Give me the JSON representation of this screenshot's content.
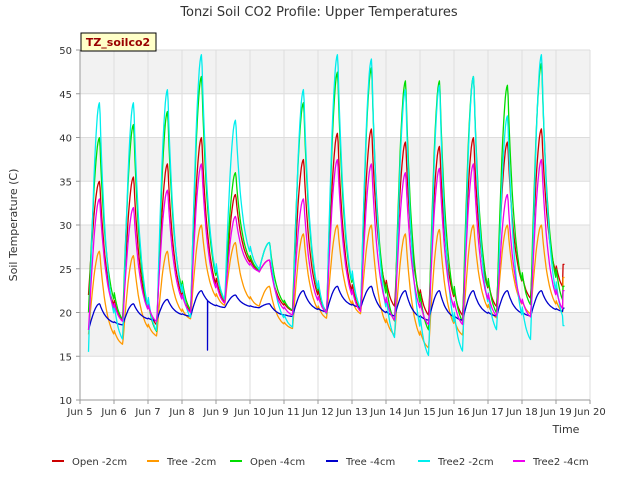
{
  "chart_data": {
    "type": "line",
    "title": "Tonzi Soil CO2 Profile: Upper Temperatures",
    "xlabel": "Time",
    "ylabel": "Soil Temperature (C)",
    "badge": "TZ_soilco2",
    "xlim": [
      5,
      20
    ],
    "ylim": [
      10,
      50
    ],
    "x_ticks": [
      5,
      6,
      7,
      8,
      9,
      10,
      11,
      12,
      13,
      14,
      15,
      16,
      17,
      18,
      19,
      20
    ],
    "x_tick_labels": [
      "Jun 5",
      "Jun 6",
      "Jun 7",
      "Jun 8",
      "Jun 9",
      "Jun 10",
      "Jun 11",
      "Jun 12",
      "Jun 13",
      "Jun 14",
      "Jun 15",
      "Jun 16",
      "Jun 17",
      "Jun 18",
      "Jun 19",
      "Jun 20"
    ],
    "y_ticks": [
      10,
      15,
      20,
      25,
      30,
      35,
      40,
      45,
      50
    ],
    "y_tick_labels": [
      "10",
      "15",
      "20",
      "25",
      "30",
      "35",
      "40",
      "45",
      "50"
    ],
    "grid": true,
    "background_bands": true,
    "legend_position": "bottom",
    "series": [
      {
        "name": "Open -2cm",
        "color": "#cc0000",
        "daily_min": [
          22.0,
          18.5,
          18.0,
          19.5,
          20.5,
          24.5,
          20.0,
          19.5,
          19.5,
          20.0,
          19.0,
          19.0,
          20.0,
          21.0,
          22.0
        ],
        "daily_max": [
          35.0,
          35.5,
          37.0,
          40.0,
          33.5,
          26.0,
          37.5,
          40.5,
          41.0,
          39.5,
          39.0,
          40.0,
          39.5,
          41.0,
          null
        ],
        "start": 23.0,
        "end": 25.5
      },
      {
        "name": "Tree -2cm",
        "color": "#ff9900",
        "daily_min": [
          17.5,
          16.0,
          17.0,
          19.0,
          20.5,
          20.5,
          18.0,
          19.0,
          19.5,
          17.0,
          15.5,
          17.0,
          19.0,
          19.5,
          19.5
        ],
        "daily_max": [
          27.0,
          26.5,
          27.0,
          30.0,
          28.0,
          23.0,
          29.0,
          30.0,
          30.0,
          29.0,
          29.5,
          30.0,
          30.0,
          30.0,
          null
        ],
        "start": 21.0,
        "end": 24.0
      },
      {
        "name": "Open -4cm",
        "color": "#00dd00",
        "daily_min": [
          20.0,
          18.5,
          17.0,
          19.5,
          20.5,
          24.5,
          20.0,
          19.0,
          19.5,
          18.0,
          17.0,
          18.0,
          19.0,
          20.0,
          20.0
        ],
        "daily_max": [
          40.0,
          41.5,
          43.0,
          47.0,
          36.0,
          28.0,
          44.0,
          47.5,
          48.0,
          46.5,
          46.5,
          47.0,
          46.0,
          48.5,
          null
        ],
        "start": 22.0,
        "end": 23.0
      },
      {
        "name": "Tree -4cm",
        "color": "#0000cc",
        "daily_min": [
          18.0,
          18.5,
          19.0,
          19.5,
          20.5,
          20.5,
          19.5,
          20.0,
          20.5,
          19.5,
          19.0,
          19.0,
          19.5,
          19.5,
          20.0
        ],
        "daily_max": [
          21.0,
          21.0,
          21.5,
          22.5,
          22.0,
          21.0,
          22.5,
          23.0,
          23.0,
          22.5,
          22.5,
          22.5,
          22.5,
          22.5,
          null
        ],
        "start": 19.0,
        "end": 20.5,
        "spike": {
          "x": 8.75,
          "y": 15.7
        }
      },
      {
        "name": "Tree2 -2cm",
        "color": "#00eeee",
        "daily_min": [
          15.5,
          16.0,
          17.0,
          18.5,
          20.5,
          24.5,
          18.0,
          19.0,
          19.5,
          16.0,
          14.0,
          14.5,
          17.0,
          16.0,
          18.0
        ],
        "daily_max": [
          44.0,
          44.0,
          45.5,
          49.5,
          42.0,
          28.0,
          45.5,
          49.5,
          49.0,
          45.5,
          46.0,
          47.0,
          42.5,
          49.5,
          null
        ],
        "start": 18.0,
        "end": 18.5
      },
      {
        "name": "Tree2 -4cm",
        "color": "#ee00ee",
        "daily_min": [
          18.0,
          18.5,
          18.5,
          19.5,
          20.5,
          24.5,
          19.5,
          19.5,
          19.5,
          18.5,
          18.0,
          18.0,
          19.0,
          19.0,
          19.5
        ],
        "daily_max": [
          33.0,
          32.0,
          34.0,
          37.0,
          31.0,
          26.0,
          33.0,
          37.5,
          37.0,
          36.0,
          36.5,
          37.0,
          33.5,
          37.5,
          null
        ],
        "start": 21.0,
        "end": 22.5
      }
    ]
  }
}
